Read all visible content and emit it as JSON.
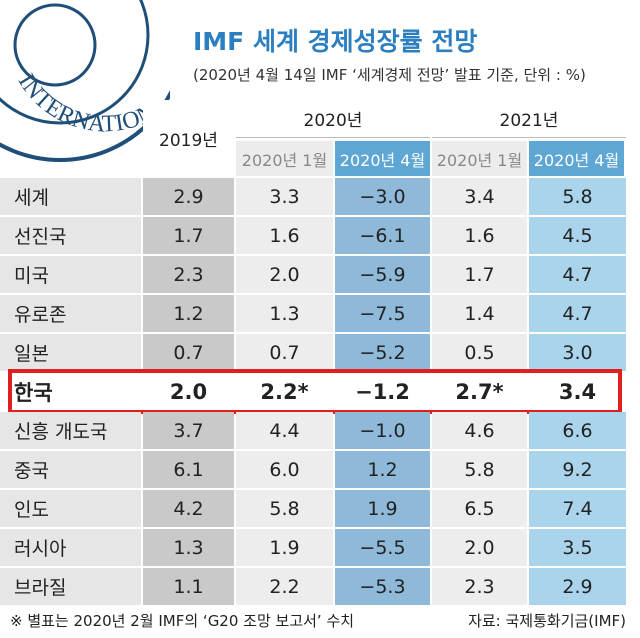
{
  "header": {
    "title": "IMF 세계 경제성장률 전망",
    "subtitle": "(2020년 4월 14일 IMF ‘세계경제 전망’ 발표 기준, 단위 : %)"
  },
  "logo": {
    "text": "INTERNATIONAL"
  },
  "table": {
    "groups": [
      "2019년",
      "2020년",
      "2021년"
    ],
    "subheaders": [
      "2020년 1월",
      "2020년 4월",
      "2020년 1월",
      "2020년 4월"
    ],
    "highlight": 5,
    "rows": [
      [
        "세계",
        "2.9",
        "3.3",
        "−3.0",
        "3.4",
        "5.8"
      ],
      [
        "선진국",
        "1.7",
        "1.6",
        "−6.1",
        "1.6",
        "4.5"
      ],
      [
        "미국",
        "2.3",
        "2.0",
        "−5.9",
        "1.7",
        "4.7"
      ],
      [
        "유로존",
        "1.2",
        "1.3",
        "−7.5",
        "1.4",
        "4.7"
      ],
      [
        "일본",
        "0.7",
        "0.7",
        "−5.2",
        "0.5",
        "3.0"
      ],
      [
        "한국",
        "2.0",
        "2.2*",
        "−1.2",
        "2.7*",
        "3.4"
      ],
      [
        "신흥 개도국",
        "3.7",
        "4.4",
        "−1.0",
        "4.6",
        "6.6"
      ],
      [
        "중국",
        "6.1",
        "6.0",
        "1.2",
        "5.8",
        "9.2"
      ],
      [
        "인도",
        "4.2",
        "5.8",
        "1.9",
        "6.5",
        "7.4"
      ],
      [
        "러시아",
        "1.3",
        "1.9",
        "−5.5",
        "2.0",
        "3.5"
      ],
      [
        "브라질",
        "1.1",
        "2.2",
        "−5.3",
        "2.3",
        "2.9"
      ]
    ]
  },
  "footnote": "※ 별표는 2020년 2월 IMF의 ‘G20 조망 보고서’ 수치",
  "source": "자료: 국제통화기금(IMF)"
}
